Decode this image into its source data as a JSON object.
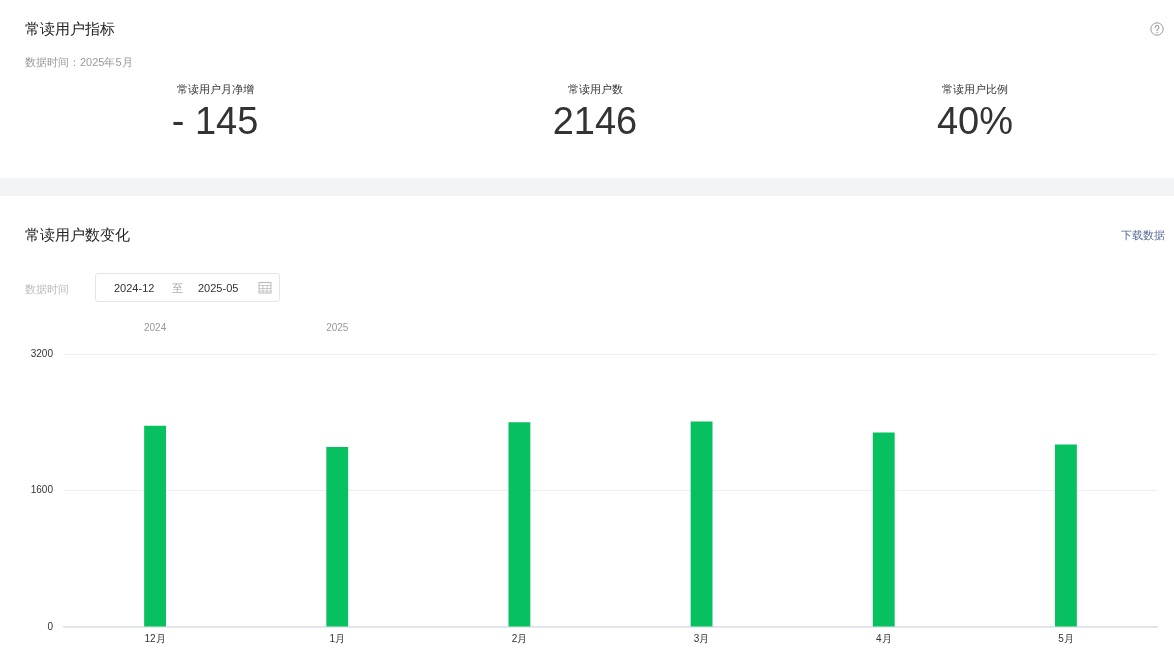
{
  "chart_data": [
    {
      "type": "other",
      "title": "常读用户指标",
      "subtitle": "数据时间：2025年5月",
      "annotations": [
        "常读用户月净增",
        "- 145",
        "常读用户数",
        "2146",
        "常读用户比例",
        "40%"
      ]
    },
    {
      "type": "bar",
      "title": "常读用户数变化",
      "annotations": [
        "下载数据",
        "数据时间",
        "2024-12",
        "至",
        "2025-05",
        "2024",
        "2025"
      ],
      "categories": [
        "12月",
        "1月",
        "2月",
        "3月",
        "4月",
        "5月"
      ],
      "values": [
        2360,
        2110,
        2400,
        2410,
        2280,
        2140
      ],
      "color": "#07c160",
      "ylim": [
        0,
        3200
      ],
      "yticks": [
        0,
        1600,
        3200
      ],
      "grid": "y"
    }
  ]
}
